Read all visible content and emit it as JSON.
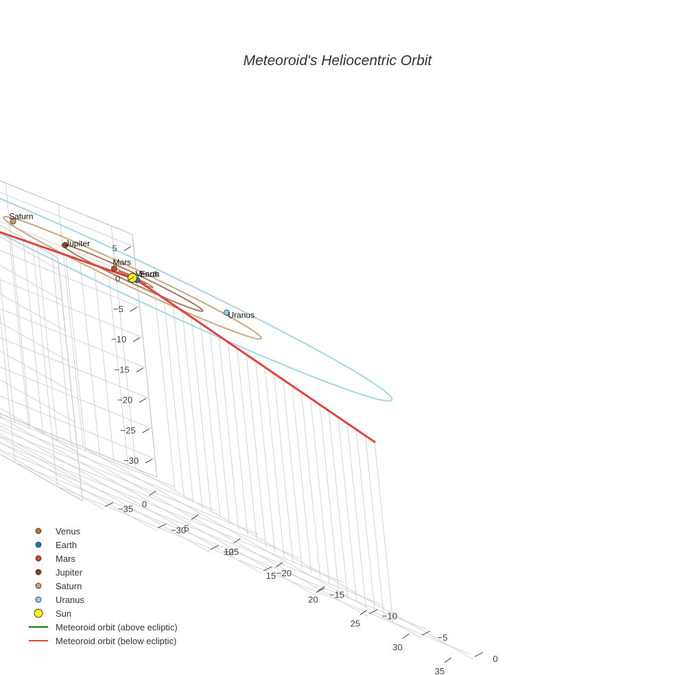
{
  "chart_data": {
    "type": "scatter3d",
    "title": "Meteoroid's Heliocentric Orbit",
    "axes": {
      "x": {
        "ticks": [
          0,
          5,
          10,
          15,
          20,
          25,
          30,
          35
        ],
        "range": [
          -2,
          38
        ]
      },
      "y": {
        "ticks": [
          -35,
          -30,
          -25,
          -20,
          -15,
          -10,
          -5,
          0
        ],
        "range": [
          -37,
          2
        ]
      },
      "z": {
        "ticks": [
          -30,
          -25,
          -20,
          -15,
          -10,
          -5,
          0,
          5
        ],
        "range": [
          -33,
          7
        ]
      }
    },
    "grid": true,
    "legend_position": "bottom-left",
    "orbit_colors": {
      "Jupiter": "#a9785e",
      "Saturn": "#c8a880",
      "Uranus": "#a6d6e6",
      "inner": "#b77b52"
    },
    "planets": [
      {
        "name": "Venus",
        "color": "#c8701a",
        "position": [
          0.2,
          0.0,
          0.0
        ]
      },
      {
        "name": "Earth",
        "color": "#1f77b4",
        "position": [
          0.3,
          0.2,
          0.0
        ]
      },
      {
        "name": "Mars",
        "color": "#cc4a24",
        "position": [
          -1.4,
          -0.6,
          0.0
        ]
      },
      {
        "name": "Jupiter",
        "color": "#8b4513",
        "position": [
          -4.2,
          -3.0,
          0.0
        ]
      },
      {
        "name": "Saturn",
        "color": "#c89d70",
        "position": [
          -6.0,
          -6.5,
          0.0
        ]
      },
      {
        "name": "Uranus",
        "color": "#87ceeb",
        "position": [
          -2.6,
          11.0,
          0.0
        ]
      }
    ],
    "sun": {
      "name": "Sun",
      "color": "#ffff00",
      "position": [
        0,
        0,
        0
      ]
    },
    "meteoroid_orbit_above": {
      "name": "Meteoroid orbit (above ecliptic)",
      "color": "#008000",
      "points": []
    },
    "meteoroid_orbit_below": {
      "name": "Meteoroid orbit (below ecliptic)",
      "color": "#e8403a",
      "segments": [
        [
          [
            0.1,
            0.3,
            0.0
          ],
          [
            3.0,
            -37.0,
            -3.0
          ]
        ],
        [
          [
            0.1,
            0.3,
            0.0
          ],
          [
            36.0,
            -6.0,
            -3.0
          ]
        ]
      ]
    }
  },
  "legend": [
    {
      "label": "Venus",
      "type": "marker",
      "color": "#c8701a"
    },
    {
      "label": "Earth",
      "type": "marker",
      "color": "#1f77b4"
    },
    {
      "label": "Mars",
      "type": "marker",
      "color": "#cc4a24"
    },
    {
      "label": "Jupiter",
      "type": "marker",
      "color": "#8b4513"
    },
    {
      "label": "Saturn",
      "type": "marker",
      "color": "#c89d70"
    },
    {
      "label": "Uranus",
      "type": "marker",
      "color": "#87ceeb"
    },
    {
      "label": "Sun",
      "type": "sun",
      "color": "#ffff00"
    },
    {
      "label": "Meteoroid orbit (above ecliptic)",
      "type": "line",
      "color": "#008000"
    },
    {
      "label": "Meteoroid orbit (below ecliptic)",
      "type": "line",
      "color": "#e8403a"
    }
  ]
}
